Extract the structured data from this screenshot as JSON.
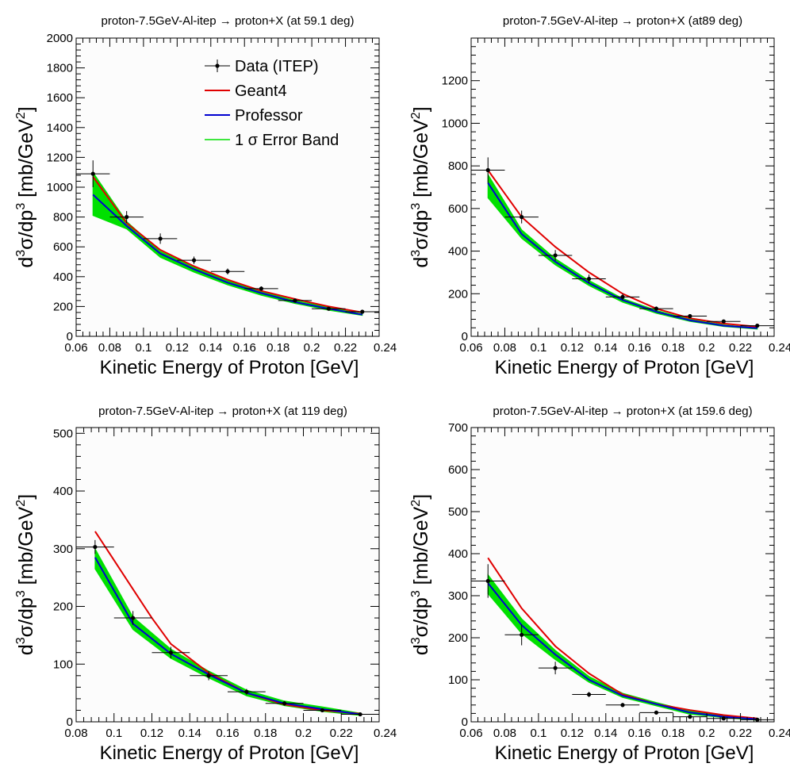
{
  "chart_data": [
    {
      "type": "line",
      "title": "proton-7.5GeV-Al-itep → proton+X (at 59.1 deg)",
      "xlabel": "Kinetic Energy of Proton [GeV]",
      "ylabel": "d³σ/dp³ [mb/GeV²]",
      "xlim": [
        0.06,
        0.24
      ],
      "ylim": [
        0,
        2000
      ],
      "x_ticks": [
        0.06,
        0.08,
        0.1,
        0.12,
        0.14,
        0.16,
        0.18,
        0.2,
        0.22,
        0.24
      ],
      "x_tick_labels": [
        "0.06",
        "0.08",
        "0.1",
        "0.12",
        "0.14",
        "0.16",
        "0.18",
        "0.2",
        "0.22",
        "0.24"
      ],
      "y_ticks": [
        0,
        200,
        400,
        600,
        800,
        1000,
        1200,
        1400,
        1600,
        1800,
        2000
      ],
      "y_tick_labels": [
        "0",
        "200",
        "400",
        "600",
        "800",
        "1000",
        "1200",
        "1400",
        "1600",
        "1800",
        "2000"
      ],
      "legend": {
        "placement": "top-right",
        "entries": [
          {
            "label": "Data (ITEP)",
            "kind": "data"
          },
          {
            "label": "Geant4",
            "kind": "geant4"
          },
          {
            "label": "Professor",
            "kind": "professor"
          },
          {
            "label": "1 σ Error Band",
            "kind": "band"
          }
        ]
      },
      "data": {
        "x": [
          0.07,
          0.09,
          0.11,
          0.13,
          0.15,
          0.17,
          0.19,
          0.21,
          0.23
        ],
        "y": [
          1090,
          800,
          655,
          510,
          435,
          320,
          240,
          185,
          165
        ],
        "yerr": [
          90,
          40,
          35,
          25,
          20,
          15,
          12,
          10,
          10
        ],
        "xerr": 0.01
      },
      "geant4": {
        "x": [
          0.07,
          0.09,
          0.11,
          0.13,
          0.15,
          0.17,
          0.19,
          0.21,
          0.23
        ],
        "y": [
          1070,
          760,
          580,
          470,
          380,
          305,
          250,
          200,
          160
        ]
      },
      "professor": {
        "x": [
          0.07,
          0.09,
          0.11,
          0.13,
          0.15,
          0.17,
          0.19,
          0.21,
          0.23
        ],
        "y": [
          950,
          740,
          555,
          450,
          360,
          290,
          230,
          185,
          145
        ]
      },
      "band": {
        "x": [
          0.07,
          0.09,
          0.11,
          0.13,
          0.15,
          0.17,
          0.19,
          0.21,
          0.23
        ],
        "low": [
          810,
          720,
          530,
          430,
          345,
          275,
          220,
          175,
          140
        ],
        "high": [
          1100,
          770,
          570,
          465,
          375,
          300,
          240,
          195,
          150
        ]
      }
    },
    {
      "type": "line",
      "title": "proton-7.5GeV-Al-itep → proton+X (at89 deg)",
      "xlabel": "Kinetic Energy of Proton [GeV]",
      "ylabel": "d³σ/dp³ [mb/GeV²]",
      "xlim": [
        0.06,
        0.24
      ],
      "ylim": [
        0,
        1400
      ],
      "x_ticks": [
        0.06,
        0.08,
        0.1,
        0.12,
        0.14,
        0.16,
        0.18,
        0.2,
        0.22,
        0.24
      ],
      "x_tick_labels": [
        "0.06",
        "0.08",
        "0.1",
        "0.12",
        "0.14",
        "0.16",
        "0.18",
        "0.2",
        "0.22",
        "0.24"
      ],
      "y_ticks": [
        0,
        200,
        400,
        600,
        800,
        1000,
        1200
      ],
      "y_tick_labels": [
        "0",
        "200",
        "400",
        "600",
        "800",
        "1000",
        "1200"
      ],
      "data": {
        "x": [
          0.07,
          0.09,
          0.11,
          0.13,
          0.15,
          0.17,
          0.19,
          0.21,
          0.23
        ],
        "y": [
          780,
          560,
          380,
          270,
          185,
          130,
          95,
          70,
          50
        ],
        "yerr": [
          60,
          30,
          25,
          20,
          15,
          10,
          8,
          6,
          5
        ],
        "xerr": 0.01
      },
      "geant4": {
        "x": [
          0.07,
          0.09,
          0.11,
          0.13,
          0.15,
          0.17,
          0.19,
          0.21,
          0.23
        ],
        "y": [
          780,
          560,
          420,
          300,
          200,
          130,
          85,
          60,
          45
        ]
      },
      "professor": {
        "x": [
          0.07,
          0.09,
          0.11,
          0.13,
          0.15,
          0.17,
          0.19,
          0.21,
          0.23
        ],
        "y": [
          720,
          480,
          350,
          250,
          170,
          115,
          75,
          50,
          38
        ]
      },
      "band": {
        "x": [
          0.07,
          0.09,
          0.11,
          0.13,
          0.15,
          0.17,
          0.19,
          0.21,
          0.23
        ],
        "low": [
          650,
          460,
          335,
          238,
          160,
          108,
          70,
          46,
          34
        ],
        "high": [
          760,
          500,
          365,
          262,
          178,
          122,
          80,
          54,
          40
        ]
      }
    },
    {
      "type": "line",
      "title": "proton-7.5GeV-Al-itep   → proton+X (at 119 deg)",
      "xlabel": "Kinetic Energy of Proton [GeV]",
      "ylabel": "d³σ/dp³ [mb/GeV²]",
      "xlim": [
        0.08,
        0.24
      ],
      "ylim": [
        0,
        510
      ],
      "x_ticks": [
        0.08,
        0.1,
        0.12,
        0.14,
        0.16,
        0.18,
        0.2,
        0.22,
        0.24
      ],
      "x_tick_labels": [
        "0.08",
        "0.1",
        "0.12",
        "0.14",
        "0.16",
        "0.18",
        "0.2",
        "0.22",
        "0.24"
      ],
      "y_ticks": [
        0,
        100,
        200,
        300,
        400,
        500
      ],
      "y_tick_labels": [
        "0",
        "100",
        "200",
        "300",
        "400",
        "500"
      ],
      "data": {
        "x": [
          0.09,
          0.11,
          0.13,
          0.15,
          0.17,
          0.19,
          0.21,
          0.23
        ],
        "y": [
          303,
          180,
          120,
          80,
          52,
          32,
          20,
          13
        ],
        "yerr": [
          12,
          12,
          10,
          8,
          5,
          4,
          3,
          2
        ],
        "xerr": 0.01
      },
      "geant4": {
        "x": [
          0.09,
          0.1,
          0.11,
          0.12,
          0.13,
          0.15,
          0.17,
          0.19,
          0.21,
          0.23
        ],
        "y": [
          330,
          280,
          230,
          180,
          135,
          85,
          50,
          30,
          20,
          14
        ]
      },
      "professor": {
        "x": [
          0.09,
          0.11,
          0.13,
          0.15,
          0.17,
          0.19,
          0.21,
          0.23
        ],
        "y": [
          285,
          170,
          118,
          82,
          50,
          32,
          22,
          13
        ]
      },
      "band": {
        "x": [
          0.09,
          0.11,
          0.13,
          0.15,
          0.17,
          0.19,
          0.21,
          0.23
        ],
        "low": [
          265,
          160,
          110,
          76,
          45,
          28,
          18,
          11
        ],
        "high": [
          300,
          182,
          126,
          88,
          55,
          36,
          26,
          15
        ]
      }
    },
    {
      "type": "line",
      "title": "proton-7.5GeV-Al-itep → proton+X (at 159.6 deg)",
      "xlabel": "Kinetic Energy of Proton [GeV]",
      "ylabel": "d³σ/dp³ [mb/GeV²]",
      "xlim": [
        0.06,
        0.24
      ],
      "ylim": [
        0,
        700
      ],
      "x_ticks": [
        0.06,
        0.08,
        0.1,
        0.12,
        0.14,
        0.16,
        0.18,
        0.2,
        0.22,
        0.24
      ],
      "x_tick_labels": [
        "0.06",
        "0.08",
        "0.1",
        "0.12",
        "0.14",
        "0.16",
        "0.18",
        "0.2",
        "0.22",
        "0.24"
      ],
      "y_ticks": [
        0,
        100,
        200,
        300,
        400,
        500,
        600,
        700
      ],
      "y_tick_labels": [
        "0",
        "100",
        "200",
        "300",
        "400",
        "500",
        "600",
        "700"
      ],
      "data": {
        "x": [
          0.07,
          0.09,
          0.11,
          0.13,
          0.15,
          0.17,
          0.19,
          0.21,
          0.23
        ],
        "y": [
          335,
          207,
          128,
          65,
          40,
          22,
          12,
          8,
          5
        ],
        "yerr": [
          40,
          25,
          15,
          6,
          5,
          3,
          2,
          2,
          2
        ],
        "xerr": 0.01
      },
      "geant4": {
        "x": [
          0.07,
          0.09,
          0.11,
          0.13,
          0.15,
          0.17,
          0.19,
          0.21,
          0.23
        ],
        "y": [
          390,
          270,
          180,
          115,
          65,
          42,
          28,
          16,
          8
        ]
      },
      "professor": {
        "x": [
          0.07,
          0.09,
          0.11,
          0.13,
          0.15,
          0.17,
          0.19,
          0.21,
          0.23
        ],
        "y": [
          330,
          230,
          160,
          100,
          62,
          42,
          22,
          12,
          6
        ]
      },
      "band": {
        "x": [
          0.07,
          0.09,
          0.11,
          0.13,
          0.15,
          0.17,
          0.19,
          0.21,
          0.23
        ],
        "low": [
          305,
          210,
          148,
          94,
          58,
          38,
          18,
          10,
          4
        ],
        "high": [
          350,
          245,
          170,
          108,
          68,
          46,
          26,
          14,
          8
        ]
      }
    }
  ],
  "colors": {
    "geant4": "#e00000",
    "professor": "#0000d0",
    "band": "#00e000",
    "data": "#000000",
    "frame_fill": "#fcfcfc"
  }
}
